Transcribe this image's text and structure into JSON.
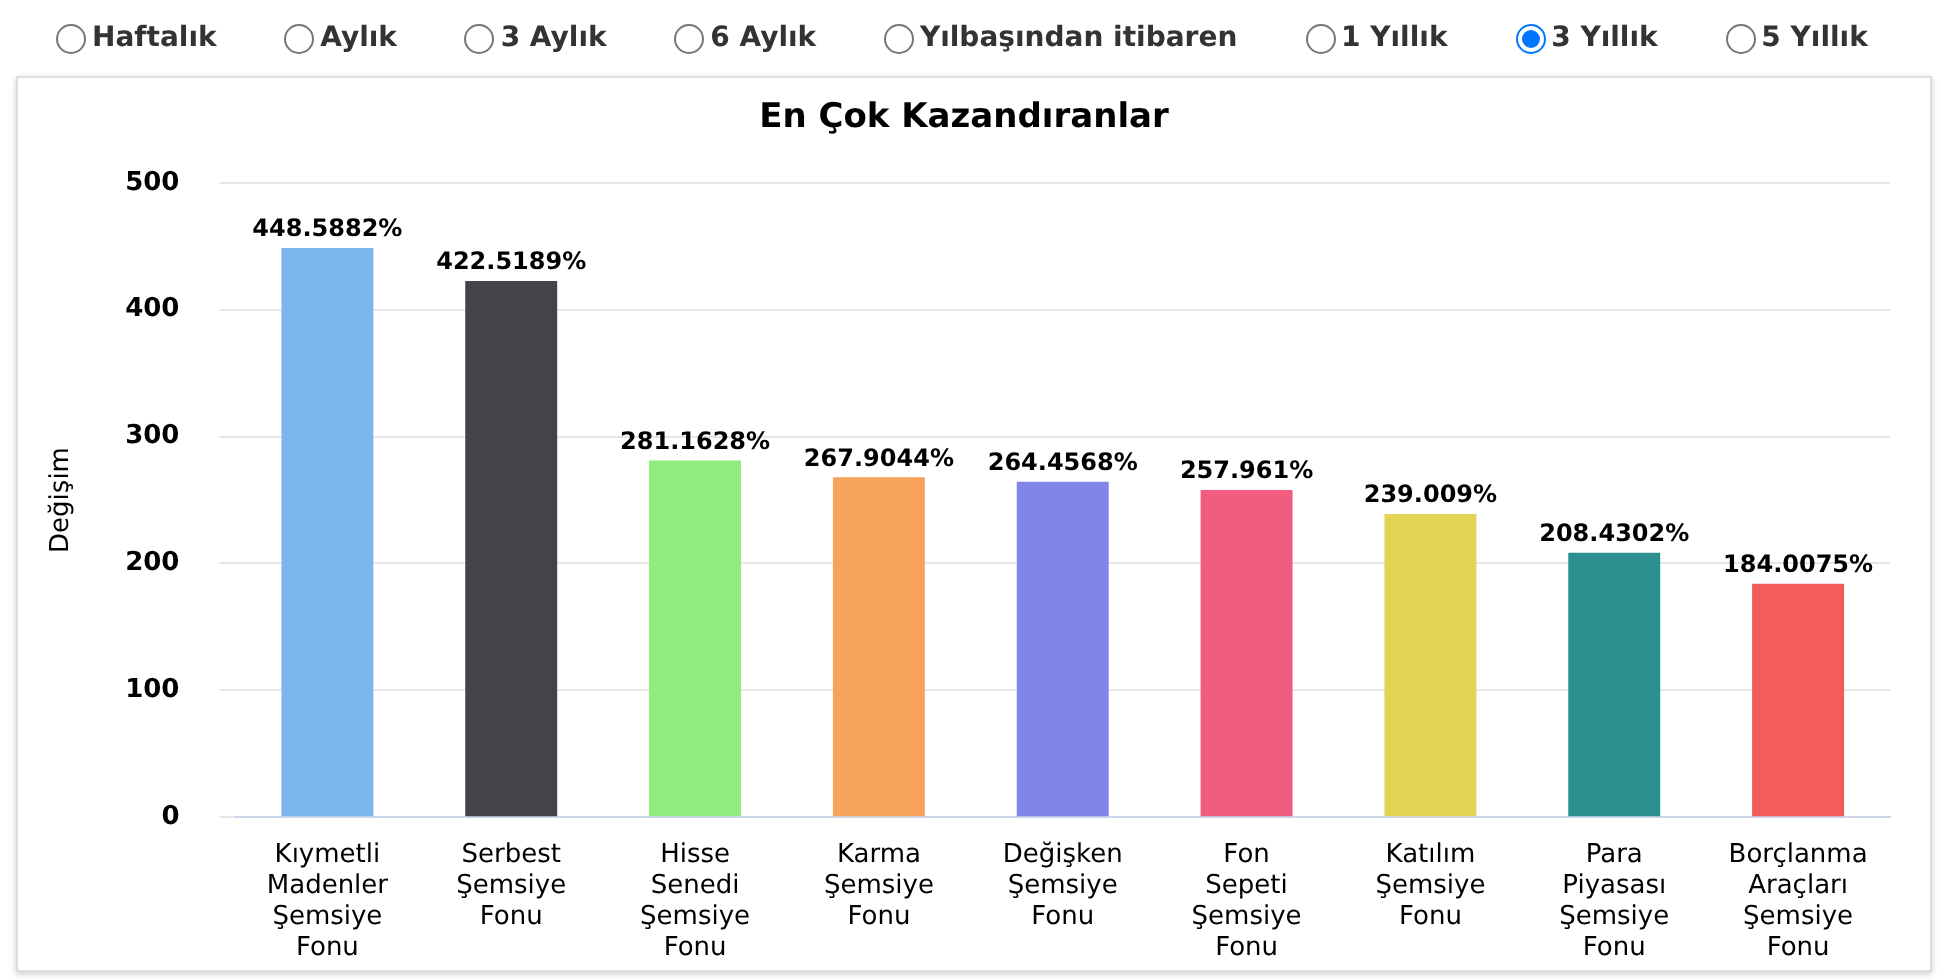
{
  "chart_data": {
    "type": "bar",
    "title": "En Çok Kazandıranlar",
    "ylabel": "Değişim",
    "categories": [
      "Kıymetli Madenler Şemsiye Fonu",
      "Serbest Şemsiye Fonu",
      "Hisse Senedi Şemsiye Fonu",
      "Karma Şemsiye Fonu",
      "Değişken Şemsiye Fonu",
      "Fon Sepeti Şemsiye Fonu",
      "Katılım Şemsiye Fonu",
      "Para Piyasası Şemsiye Fonu",
      "Borçlanma Araçları Şemsiye Fonu"
    ],
    "values": [
      448.5882,
      422.5189,
      281.1628,
      267.9044,
      264.4568,
      257.961,
      239.009,
      208.4302,
      184.0075
    ],
    "value_labels": [
      "448.5882%",
      "422.5189%",
      "281.1628%",
      "267.9044%",
      "264.4568%",
      "257.961%",
      "239.009%",
      "208.4302%",
      "184.0075%"
    ],
    "colors": [
      "#7cb5ec",
      "#434348",
      "#90ed7d",
      "#f7a35c",
      "#8085e9",
      "#f15c80",
      "#e4d354",
      "#2b908f",
      "#f45b5b"
    ],
    "ylim": [
      0,
      500
    ],
    "yticks": [
      0,
      100,
      200,
      300,
      400,
      500
    ],
    "grid": "y",
    "legend": false,
    "annotations": [
      "Haftalık",
      "Aylık",
      "3 Aylık",
      "6 Aylık",
      "Yılbaşından itibaren",
      "1 Yıllık",
      "3 Yıllık",
      "5 Yıllık"
    ]
  }
}
